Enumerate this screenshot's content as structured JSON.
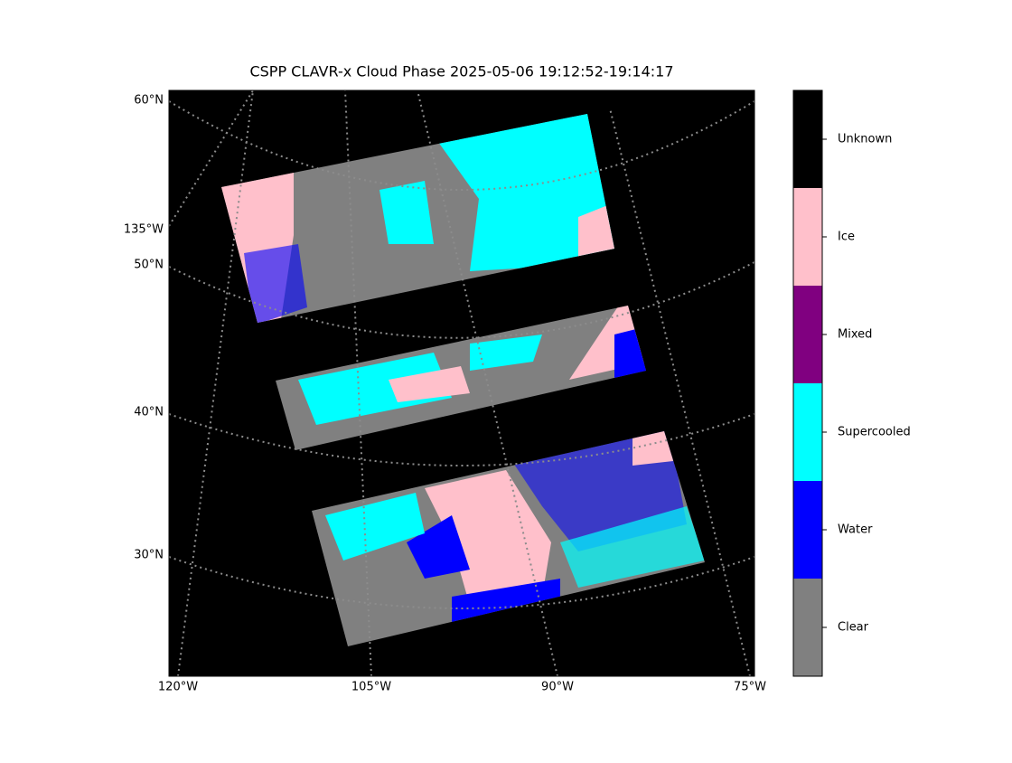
{
  "title": "CSPP CLAVR-x Cloud Phase 2025-05-06 19:12:52-19:14:17",
  "lat_labels": [
    "60°N",
    "135°W",
    "50°N",
    "40°N",
    "30°N"
  ],
  "lon_labels": [
    "120°W",
    "105°W",
    "90°W",
    "75°W"
  ],
  "colorbar": {
    "categories": [
      "Clear",
      "Water",
      "Supercooled",
      "Mixed",
      "Ice",
      "Unknown"
    ],
    "colors": [
      "#808080",
      "#0000ff",
      "#00ffff",
      "#800080",
      "#ffc0cb",
      "#000000"
    ]
  }
}
